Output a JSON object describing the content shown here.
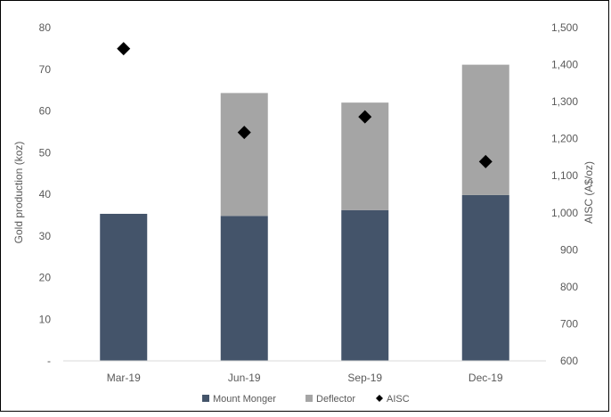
{
  "chart_data": {
    "type": "bar",
    "stacked": true,
    "categories": [
      "Mar-19",
      "Jun-19",
      "Sep-19",
      "Dec-19"
    ],
    "series": [
      {
        "name": "Mount Monger",
        "values": [
          35.3,
          34.8,
          36.2,
          39.8
        ],
        "color": "#44546a",
        "axis": "left"
      },
      {
        "name": "Deflector",
        "values": [
          0,
          29.5,
          25.8,
          31.3
        ],
        "color": "#a5a5a5",
        "axis": "left"
      },
      {
        "name": "AISC",
        "values": [
          1443,
          1217,
          1259,
          1138
        ],
        "color": "#000000",
        "axis": "right",
        "marker": "diamond"
      }
    ],
    "ylabel": "Gold production (koz)",
    "ylabel_right": "AISC (A$/oz)",
    "ylim": [
      0,
      80
    ],
    "ylim_right": [
      600,
      1500
    ],
    "yticks": [
      "-",
      "10",
      "20",
      "30",
      "40",
      "50",
      "60",
      "70",
      "80"
    ],
    "yticks_right": [
      "600",
      "700",
      "800",
      "900",
      "1,000",
      "1,100",
      "1,200",
      "1,300",
      "1,400",
      "1,500"
    ],
    "grid": false,
    "legend": "bottom"
  }
}
